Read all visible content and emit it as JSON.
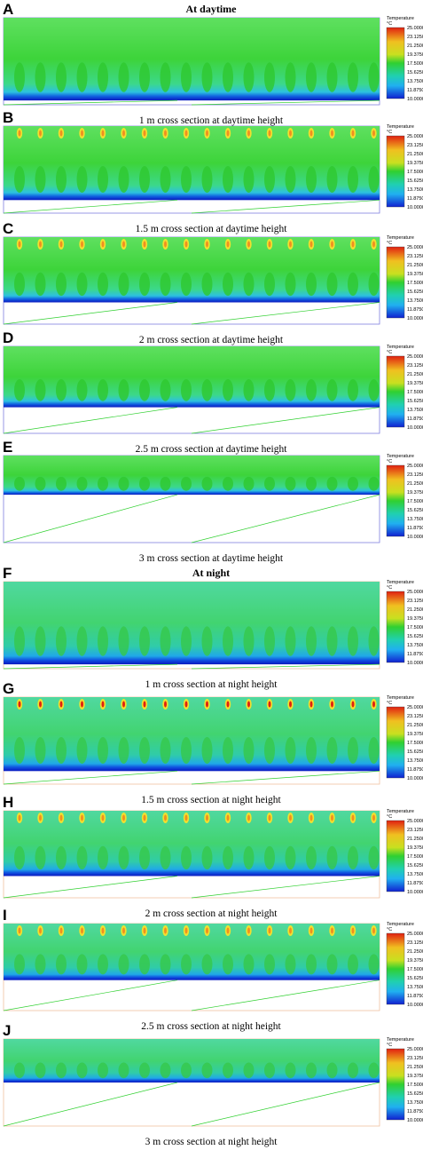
{
  "panels": [
    {
      "label": "A",
      "heading": "At daytime",
      "caption": "1 m cross section at daytime height"
    },
    {
      "label": "B",
      "caption": "1.5 m cross section at daytime height"
    },
    {
      "label": "C",
      "caption": "2 m cross section at daytime height"
    },
    {
      "label": "D",
      "caption": "2.5 m cross section at daytime height"
    },
    {
      "label": "E",
      "caption": "3 m cross section at daytime height"
    },
    {
      "label": "F",
      "heading": "At night",
      "caption": "1 m cross section at night height"
    },
    {
      "label": "G",
      "caption": "1.5 m cross section at night height"
    },
    {
      "label": "H",
      "caption": "2 m cross section at night height"
    },
    {
      "label": "I",
      "caption": "2.5 m cross section at night height"
    },
    {
      "label": "J",
      "caption": "3 m cross section at night height"
    }
  ],
  "colorbar": {
    "title": "Temperature",
    "unit": "°C",
    "ticks": [
      "25.0000",
      "23.1250",
      "21.2500",
      "19.3750",
      "17.5000",
      "15.6250",
      "13.7500",
      "11.8750",
      "10.0000"
    ]
  }
}
